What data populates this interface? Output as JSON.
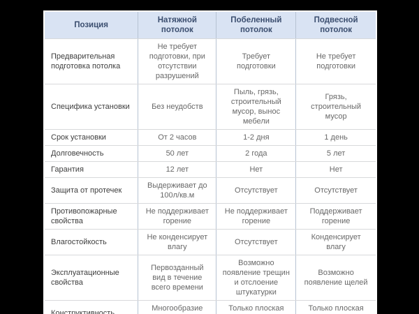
{
  "colors": {
    "page_background": "#000000",
    "table_background": "#ffffff",
    "header_background": "#d9e3f3",
    "header_text": "#3b4e6f",
    "grid_vertical": "#b7c3d3",
    "grid_horizontal": "#d8d9db",
    "label_text": "#3e3e3e",
    "value_text": "#686868"
  },
  "chart_data": {
    "type": "table",
    "title": "",
    "columns": [
      "Позиция",
      "Натяжной потолок",
      "Побеленный потолок",
      "Подвесной потолок"
    ],
    "rows": [
      {
        "label": "Предварительная подготовка потолка",
        "values": [
          "Не требует подготовки, при отсутствии разрушений",
          "Требует подготовки",
          "Не требует подготовки"
        ]
      },
      {
        "label": "Специфика установки",
        "values": [
          "Без неудобств",
          "Пыль, грязь, строительный мусор, вынос мебели",
          "Грязь, строительный мусор"
        ]
      },
      {
        "label": "Срок установки",
        "values": [
          "От 2 часов",
          "1-2 дня",
          "1 день"
        ]
      },
      {
        "label": "Долговечность",
        "values": [
          "50 лет",
          "2 года",
          "5 лет"
        ]
      },
      {
        "label": "Гарантия",
        "values": [
          "12 лет",
          "Нет",
          "Нет"
        ]
      },
      {
        "label": "Защита от протечек",
        "values": [
          "Выдерживает до 100л/кв.м",
          "Отсутствует",
          "Отсутствует"
        ]
      },
      {
        "label": "Противопожарные свойства",
        "values": [
          "Не поддерживает горение",
          "Не поддерживает горение",
          "Поддерживает горение"
        ]
      },
      {
        "label": "Влагостойкость",
        "values": [
          "Не конденсирует влагу",
          "Отсутствует",
          "Конденсирует влагу"
        ]
      },
      {
        "label": "Эксплуатационные свойства",
        "values": [
          "Первозданный вид в течение всего времени",
          "Возможно появление трещин и отслоение штукатурки",
          "Возможно появление щелей"
        ]
      },
      {
        "label": "Конструктивность",
        "values": [
          "Многообразие форм",
          "Только плоская поверхность",
          "Только плоская поверхность"
        ]
      }
    ]
  }
}
